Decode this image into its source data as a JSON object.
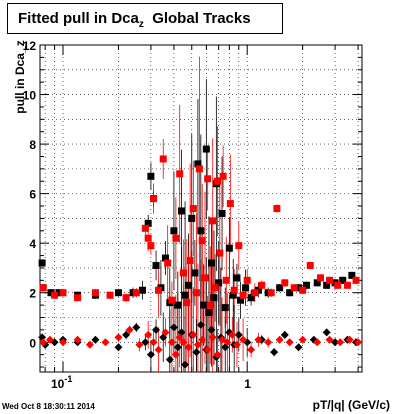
{
  "title": {
    "main": "Fitted pull in Dca",
    "sub": "z",
    "rest": "Global Tracks"
  },
  "timestamp": "Wed Oct  8 18:30:11 2014",
  "chart_data": {
    "type": "scatter",
    "title": "Fitted pull in Dca_z  Global Tracks",
    "xlabel": "pT/|q| (GeV/c)",
    "ylabel": "pull in Dca_z",
    "x_scale": "log",
    "xlim": [
      0.075,
      4.2
    ],
    "ylim": [
      -1.2,
      12
    ],
    "grid": true,
    "x_tick_labels": [
      "10^-1",
      "1"
    ],
    "y_tick_labels": [
      "0",
      "2",
      "4",
      "6",
      "8",
      "10",
      "12"
    ],
    "series": [
      {
        "marker": "square",
        "color": "#000000",
        "points": [
          [
            0.077,
            3.2
          ],
          [
            0.078,
            2.2
          ],
          [
            0.086,
            2.0
          ],
          [
            0.095,
            2.0
          ],
          [
            0.12,
            1.9
          ],
          [
            0.15,
            1.9
          ],
          [
            0.2,
            2.0
          ],
          [
            0.24,
            2.0
          ],
          [
            0.27,
            2.1
          ],
          [
            0.29,
            4.8
          ],
          [
            0.3,
            6.7
          ],
          [
            0.31,
            5.8
          ],
          [
            0.32,
            3.1
          ],
          [
            0.34,
            2.2
          ],
          [
            0.36,
            3.4
          ],
          [
            0.38,
            1.6
          ],
          [
            0.4,
            4.5
          ],
          [
            0.42,
            1.5
          ],
          [
            0.44,
            5.3
          ],
          [
            0.46,
            1.9
          ],
          [
            0.48,
            2.3
          ],
          [
            0.5,
            5.0
          ],
          [
            0.52,
            2.8
          ],
          [
            0.54,
            7.2
          ],
          [
            0.56,
            4.5
          ],
          [
            0.58,
            1.5
          ],
          [
            0.6,
            7.8
          ],
          [
            0.62,
            1.2
          ],
          [
            0.64,
            3.2
          ],
          [
            0.66,
            1.8
          ],
          [
            0.68,
            6.4
          ],
          [
            0.7,
            2.4
          ],
          [
            0.73,
            5.2
          ],
          [
            0.76,
            1.4
          ],
          [
            0.8,
            3.8
          ],
          [
            0.84,
            1.9
          ],
          [
            0.88,
            2.6
          ],
          [
            0.92,
            1.7
          ],
          [
            0.98,
            2.2
          ],
          [
            1.05,
            1.8
          ],
          [
            1.15,
            2.1
          ],
          [
            1.3,
            2.0
          ],
          [
            1.5,
            2.2
          ],
          [
            1.7,
            2.0
          ],
          [
            1.9,
            2.2
          ],
          [
            2.1,
            2.3
          ],
          [
            2.4,
            2.4
          ],
          [
            2.7,
            2.3
          ],
          [
            3.0,
            2.4
          ],
          [
            3.3,
            2.5
          ],
          [
            3.7,
            2.7
          ]
        ]
      },
      {
        "marker": "square",
        "color": "#ff0000",
        "points": [
          [
            0.078,
            2.2
          ],
          [
            0.09,
            1.9
          ],
          [
            0.1,
            2.0
          ],
          [
            0.12,
            1.8
          ],
          [
            0.15,
            2.0
          ],
          [
            0.18,
            1.9
          ],
          [
            0.22,
            1.8
          ],
          [
            0.25,
            2.0
          ],
          [
            0.28,
            4.6
          ],
          [
            0.29,
            4.2
          ],
          [
            0.3,
            3.9
          ],
          [
            0.31,
            5.8
          ],
          [
            0.33,
            2.1
          ],
          [
            0.35,
            7.4
          ],
          [
            0.37,
            3.2
          ],
          [
            0.39,
            1.7
          ],
          [
            0.41,
            4.2
          ],
          [
            0.43,
            6.8
          ],
          [
            0.45,
            2.8
          ],
          [
            0.47,
            1.6
          ],
          [
            0.49,
            3.3
          ],
          [
            0.51,
            5.4
          ],
          [
            0.53,
            2.0
          ],
          [
            0.55,
            7.0
          ],
          [
            0.57,
            4.1
          ],
          [
            0.59,
            2.6
          ],
          [
            0.61,
            6.6
          ],
          [
            0.63,
            1.5
          ],
          [
            0.65,
            4.9
          ],
          [
            0.67,
            2.2
          ],
          [
            0.69,
            6.5
          ],
          [
            0.71,
            3.6
          ],
          [
            0.74,
            6.7
          ],
          [
            0.77,
            2.5
          ],
          [
            0.81,
            5.6
          ],
          [
            0.85,
            2.1
          ],
          [
            0.9,
            3.9
          ],
          [
            0.95,
            1.9
          ],
          [
            1.0,
            2.5
          ],
          [
            1.1,
            2.0
          ],
          [
            1.2,
            2.3
          ],
          [
            1.35,
            2.0
          ],
          [
            1.45,
            5.4
          ],
          [
            1.6,
            2.4
          ],
          [
            1.8,
            2.2
          ],
          [
            2.0,
            2.1
          ],
          [
            2.2,
            3.1
          ],
          [
            2.5,
            2.6
          ],
          [
            2.8,
            2.5
          ],
          [
            3.1,
            2.3
          ],
          [
            3.5,
            2.3
          ],
          [
            3.9,
            2.5
          ]
        ]
      },
      {
        "marker": "diamond",
        "color": "#000000",
        "points": [
          [
            0.077,
            0.2
          ],
          [
            0.08,
            -0.1
          ],
          [
            0.09,
            0.0
          ],
          [
            0.1,
            0.1
          ],
          [
            0.12,
            0.0
          ],
          [
            0.15,
            0.1
          ],
          [
            0.2,
            -0.2
          ],
          [
            0.22,
            0.3
          ],
          [
            0.25,
            0.6
          ],
          [
            0.28,
            0.0
          ],
          [
            0.3,
            -0.5
          ],
          [
            0.32,
            0.5
          ],
          [
            0.35,
            0.2
          ],
          [
            0.38,
            -0.7
          ],
          [
            0.4,
            0.6
          ],
          [
            0.42,
            -0.2
          ],
          [
            0.44,
            0.4
          ],
          [
            0.46,
            -0.9
          ],
          [
            0.5,
            0.3
          ],
          [
            0.53,
            -0.4
          ],
          [
            0.56,
            0.7
          ],
          [
            0.6,
            -0.3
          ],
          [
            0.64,
            0.5
          ],
          [
            0.68,
            -0.6
          ],
          [
            0.72,
            0.2
          ],
          [
            0.76,
            -0.2
          ],
          [
            0.8,
            0.4
          ],
          [
            0.85,
            -0.1
          ],
          [
            0.9,
            0.3
          ],
          [
            1.0,
            0.0
          ],
          [
            1.2,
            0.1
          ],
          [
            1.4,
            -0.4
          ],
          [
            1.6,
            0.3
          ],
          [
            1.9,
            -0.2
          ],
          [
            2.3,
            0.1
          ],
          [
            2.7,
            0.4
          ],
          [
            3.0,
            0.0
          ],
          [
            3.5,
            0.1
          ],
          [
            3.9,
            0.0
          ]
        ]
      },
      {
        "marker": "diamond",
        "color": "#ff0000",
        "points": [
          [
            0.078,
            0.0
          ],
          [
            0.085,
            0.1
          ],
          [
            0.1,
            0.0
          ],
          [
            0.12,
            0.1
          ],
          [
            0.14,
            -0.1
          ],
          [
            0.17,
            0.0
          ],
          [
            0.2,
            0.2
          ],
          [
            0.23,
            0.5
          ],
          [
            0.26,
            -0.1
          ],
          [
            0.29,
            0.3
          ],
          [
            0.31,
            0.0
          ],
          [
            0.33,
            -0.3
          ],
          [
            0.36,
            0.4
          ],
          [
            0.39,
            0.0
          ],
          [
            0.41,
            -0.5
          ],
          [
            0.43,
            0.2
          ],
          [
            0.45,
            0.0
          ],
          [
            0.48,
            -0.2
          ],
          [
            0.51,
            0.3
          ],
          [
            0.54,
            -0.1
          ],
          [
            0.57,
            0.1
          ],
          [
            0.61,
            -0.3
          ],
          [
            0.65,
            0.2
          ],
          [
            0.69,
            -0.5
          ],
          [
            0.73,
            0.1
          ],
          [
            0.78,
            0.0
          ],
          [
            0.83,
            0.3
          ],
          [
            0.88,
            -0.1
          ],
          [
            0.95,
            0.1
          ],
          [
            1.05,
            -0.3
          ],
          [
            1.15,
            0.1
          ],
          [
            1.3,
            0.0
          ],
          [
            1.5,
            0.1
          ],
          [
            1.7,
            0.0
          ],
          [
            2.0,
            0.1
          ],
          [
            2.4,
            0.0
          ],
          [
            2.8,
            0.1
          ],
          [
            3.2,
            0.0
          ],
          [
            3.6,
            0.1
          ],
          [
            4.0,
            0.0
          ]
        ]
      }
    ]
  }
}
